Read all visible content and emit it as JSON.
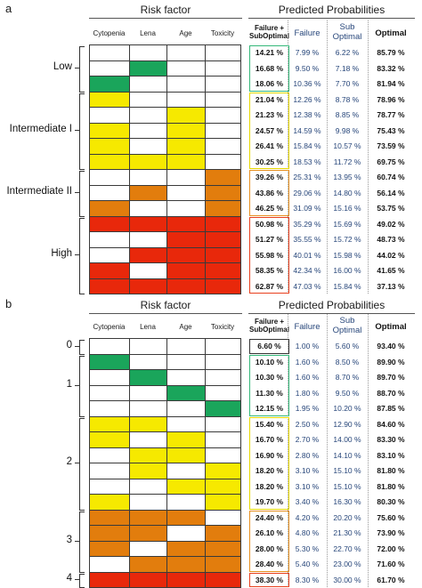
{
  "panels": [
    {
      "id": "a",
      "label": "a",
      "risk_factor_title": "Risk factor",
      "predicted_title": "Predicted Probabilities",
      "factor_columns": [
        "Cytopenia",
        "Lena",
        "Age",
        "Toxicity"
      ],
      "prob_headers": {
        "fso": "Failure + SubOptimal",
        "failure": "Failure",
        "sub": "Sub Optimal",
        "optimal": "Optimal"
      },
      "groups": [
        {
          "label": "Low",
          "rows": 3,
          "box_color": "#35b87a"
        },
        {
          "label": "Intermediate I",
          "rows": 5,
          "box_color": "#e8d800"
        },
        {
          "label": "Intermediate II",
          "rows": 3,
          "box_color": "#e69020"
        },
        {
          "label": "High",
          "rows": 5,
          "box_color": "#e8401e"
        }
      ],
      "rows": [
        {
          "cells": [
            "w",
            "w",
            "w",
            "w"
          ],
          "fso": "14.21 %",
          "failure": "7.99 %",
          "sub": "6.22 %",
          "optimal": "85.79 %"
        },
        {
          "cells": [
            "w",
            "g",
            "w",
            "w"
          ],
          "fso": "16.68 %",
          "failure": "9.50 %",
          "sub": "7.18 %",
          "optimal": "83.32 %"
        },
        {
          "cells": [
            "g",
            "w",
            "w",
            "w"
          ],
          "fso": "18.06 %",
          "failure": "10.36 %",
          "sub": "7.70 %",
          "optimal": "81.94 %"
        },
        {
          "cells": [
            "y",
            "w",
            "w",
            "w"
          ],
          "fso": "21.04 %",
          "failure": "12.26 %",
          "sub": "8.78 %",
          "optimal": "78.96 %"
        },
        {
          "cells": [
            "w",
            "w",
            "y",
            "w"
          ],
          "fso": "21.23 %",
          "failure": "12.38 %",
          "sub": "8.85 %",
          "optimal": "78.77 %"
        },
        {
          "cells": [
            "y",
            "w",
            "y",
            "w"
          ],
          "fso": "24.57 %",
          "failure": "14.59 %",
          "sub": "9.98 %",
          "optimal": "75.43 %"
        },
        {
          "cells": [
            "y",
            "w",
            "y",
            "w"
          ],
          "fso": "26.41 %",
          "failure": "15.84 %",
          "sub": "10.57 %",
          "optimal": "73.59 %"
        },
        {
          "cells": [
            "y",
            "y",
            "y",
            "w"
          ],
          "fso": "30.25 %",
          "failure": "18.53 %",
          "sub": "11.72 %",
          "optimal": "69.75 %"
        },
        {
          "cells": [
            "w",
            "w",
            "w",
            "o"
          ],
          "fso": "39.26 %",
          "failure": "25.31 %",
          "sub": "13.95 %",
          "optimal": "60.74 %"
        },
        {
          "cells": [
            "w",
            "o",
            "w",
            "o"
          ],
          "fso": "43.86 %",
          "failure": "29.06 %",
          "sub": "14.80 %",
          "optimal": "56.14 %"
        },
        {
          "cells": [
            "o",
            "w",
            "w",
            "o"
          ],
          "fso": "46.25 %",
          "failure": "31.09 %",
          "sub": "15.16 %",
          "optimal": "53.75 %"
        },
        {
          "cells": [
            "r",
            "r",
            "r",
            "r"
          ],
          "fso": "50.98 %",
          "failure": "35.29 %",
          "sub": "15.69 %",
          "optimal": "49.02 %"
        },
        {
          "cells": [
            "w",
            "w",
            "r",
            "r"
          ],
          "fso": "51.27 %",
          "failure": "35.55 %",
          "sub": "15.72 %",
          "optimal": "48.73 %"
        },
        {
          "cells": [
            "w",
            "r",
            "r",
            "r"
          ],
          "fso": "55.98 %",
          "failure": "40.01 %",
          "sub": "15.98 %",
          "optimal": "44.02 %"
        },
        {
          "cells": [
            "r",
            "w",
            "r",
            "r"
          ],
          "fso": "58.35 %",
          "failure": "42.34 %",
          "sub": "16.00 %",
          "optimal": "41.65 %"
        },
        {
          "cells": [
            "r",
            "r",
            "r",
            "r"
          ],
          "fso": "62.87 %",
          "failure": "47.03 %",
          "sub": "15.84 %",
          "optimal": "37.13 %"
        }
      ]
    },
    {
      "id": "b",
      "label": "b",
      "risk_factor_title": "Risk factor",
      "predicted_title": "Predicted Probabilities",
      "factor_columns": [
        "Cytopenia",
        "Lena",
        "Age",
        "Toxicity"
      ],
      "prob_headers": {
        "fso": "Failure + SubOptimal",
        "failure": "Failure",
        "sub": "Sub Optimal",
        "optimal": "Optimal"
      },
      "groups": [
        {
          "label": "0",
          "rows": 1,
          "box_color": "#333333"
        },
        {
          "label": "1",
          "rows": 4,
          "box_color": "#35b87a"
        },
        {
          "label": "2",
          "rows": 6,
          "box_color": "#e8d800"
        },
        {
          "label": "3",
          "rows": 4,
          "box_color": "#e69020"
        },
        {
          "label": "4",
          "rows": 1,
          "box_color": "#e8401e"
        }
      ],
      "rows": [
        {
          "cells": [
            "w",
            "w",
            "w",
            "w"
          ],
          "fso": "6.60 %",
          "failure": "1.00 %",
          "sub": "5.60 %",
          "optimal": "93.40 %"
        },
        {
          "cells": [
            "g",
            "w",
            "w",
            "w"
          ],
          "fso": "10.10 %",
          "failure": "1.60 %",
          "sub": "8.50 %",
          "optimal": "89.90 %"
        },
        {
          "cells": [
            "w",
            "g",
            "w",
            "w"
          ],
          "fso": "10.30 %",
          "failure": "1.60 %",
          "sub": "8.70 %",
          "optimal": "89.70 %"
        },
        {
          "cells": [
            "w",
            "w",
            "g",
            "w"
          ],
          "fso": "11.30 %",
          "failure": "1.80 %",
          "sub": "9.50 %",
          "optimal": "88.70 %"
        },
        {
          "cells": [
            "w",
            "w",
            "w",
            "g"
          ],
          "fso": "12.15 %",
          "failure": "1.95 %",
          "sub": "10.20 %",
          "optimal": "87.85 %"
        },
        {
          "cells": [
            "y",
            "y",
            "w",
            "w"
          ],
          "fso": "15.40 %",
          "failure": "2.50 %",
          "sub": "12.90 %",
          "optimal": "84.60 %"
        },
        {
          "cells": [
            "y",
            "w",
            "y",
            "w"
          ],
          "fso": "16.70 %",
          "failure": "2.70 %",
          "sub": "14.00 %",
          "optimal": "83.30 %"
        },
        {
          "cells": [
            "w",
            "y",
            "y",
            "w"
          ],
          "fso": "16.90 %",
          "failure": "2.80 %",
          "sub": "14.10 %",
          "optimal": "83.10 %"
        },
        {
          "cells": [
            "w",
            "y",
            "w",
            "y"
          ],
          "fso": "18.20 %",
          "failure": "3.10 %",
          "sub": "15.10 %",
          "optimal": "81.80 %"
        },
        {
          "cells": [
            "w",
            "w",
            "y",
            "y"
          ],
          "fso": "18.20 %",
          "failure": "3.10 %",
          "sub": "15.10 %",
          "optimal": "81.80 %"
        },
        {
          "cells": [
            "y",
            "w",
            "w",
            "y"
          ],
          "fso": "19.70 %",
          "failure": "3.40 %",
          "sub": "16.30 %",
          "optimal": "80.30 %"
        },
        {
          "cells": [
            "o",
            "o",
            "o",
            "w"
          ],
          "fso": "24.40 %",
          "failure": "4.20 %",
          "sub": "20.20 %",
          "optimal": "75.60 %"
        },
        {
          "cells": [
            "o",
            "o",
            "w",
            "o"
          ],
          "fso": "26.10 %",
          "failure": "4.80 %",
          "sub": "21.30 %",
          "optimal": "73.90 %"
        },
        {
          "cells": [
            "o",
            "w",
            "o",
            "o"
          ],
          "fso": "28.00 %",
          "failure": "5.30 %",
          "sub": "22.70 %",
          "optimal": "72.00 %"
        },
        {
          "cells": [
            "w",
            "o",
            "o",
            "o"
          ],
          "fso": "28.40 %",
          "failure": "5.40 %",
          "sub": "23.00 %",
          "optimal": "71.60 %"
        },
        {
          "cells": [
            "r",
            "r",
            "r",
            "r"
          ],
          "fso": "38.30 %",
          "failure": "8.30 %",
          "sub": "30.00 %",
          "optimal": "61.70 %"
        }
      ]
    }
  ]
}
